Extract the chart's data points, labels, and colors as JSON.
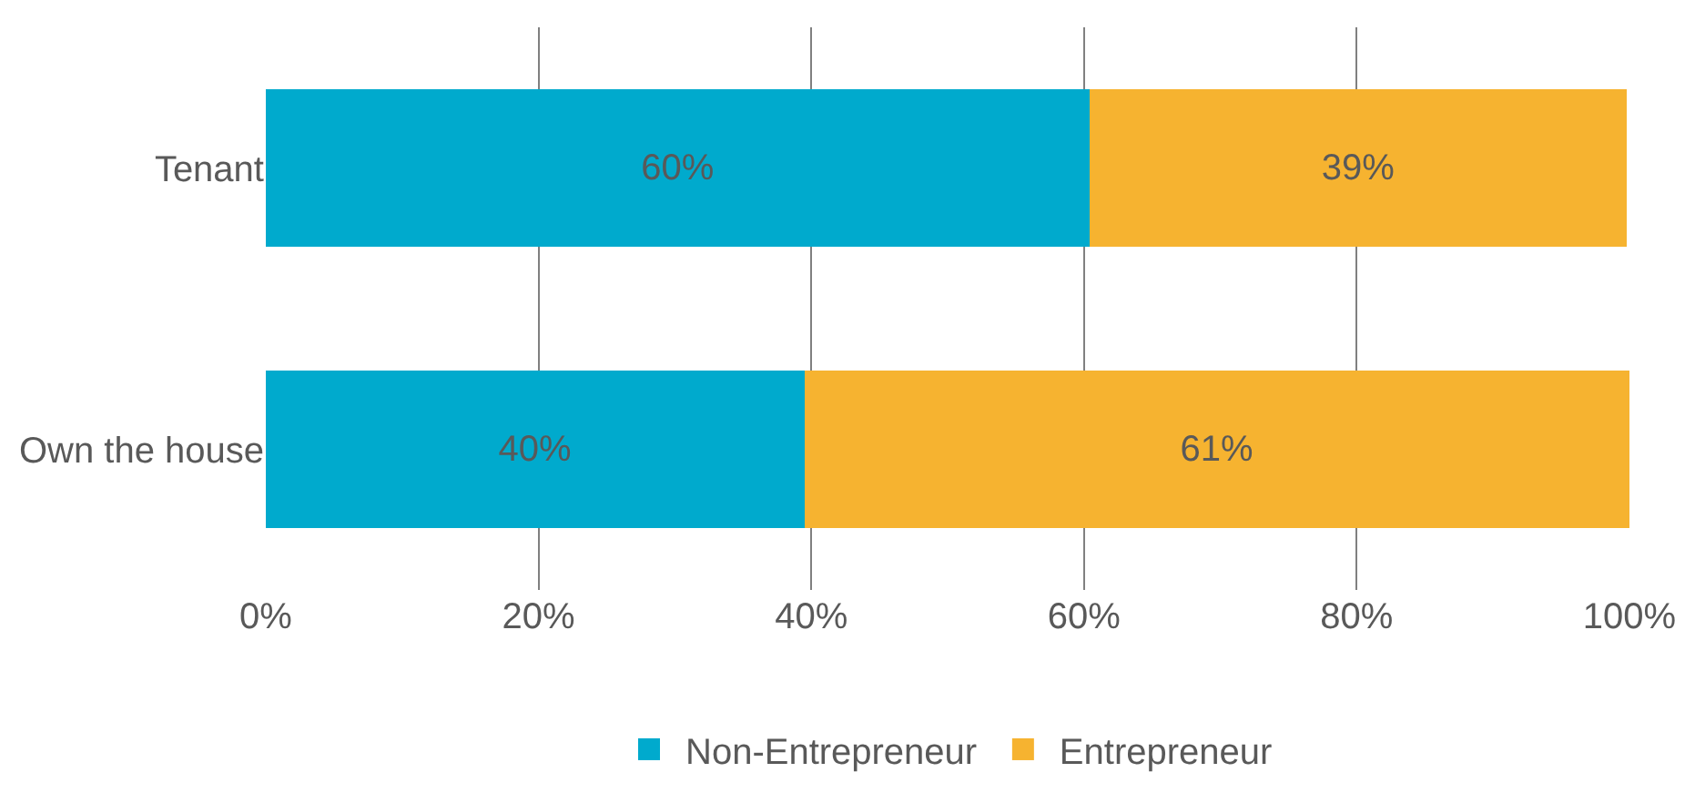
{
  "chart_data": {
    "type": "bar",
    "orientation": "horizontal",
    "stacked": true,
    "categories": [
      "Tenant",
      "Own the house"
    ],
    "series": [
      {
        "name": "Non-Entrepreneur",
        "color": "#00aacd",
        "values": [
          60.4,
          39.5
        ],
        "value_labels": [
          "60%",
          "40%"
        ]
      },
      {
        "name": "Entrepreneur",
        "color": "#f6b330",
        "values": [
          39.4,
          60.5
        ],
        "value_labels": [
          "39%",
          "61%"
        ]
      }
    ],
    "xlim": [
      0,
      100
    ],
    "xticks": [
      {
        "value": 0,
        "label": "0%"
      },
      {
        "value": 20,
        "label": "20%"
      },
      {
        "value": 40,
        "label": "40%"
      },
      {
        "value": 60,
        "label": "60%"
      },
      {
        "value": 80,
        "label": "80%"
      },
      {
        "value": 100,
        "label": "100%"
      }
    ],
    "grid": "x",
    "legend": "bottom"
  }
}
